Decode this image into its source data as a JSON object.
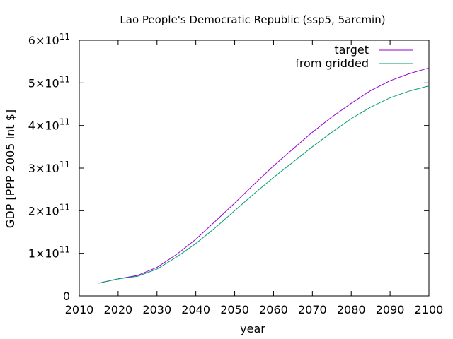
{
  "chart_data": {
    "type": "line",
    "title": "Lao People's Democratic Republic (ssp5, 5arcmin)",
    "xlabel": "year",
    "ylabel": "GDP [PPP 2005 Int $]",
    "xlim": [
      2010,
      2100
    ],
    "ylim": [
      0,
      600000000000
    ],
    "x_ticks": [
      2010,
      2020,
      2030,
      2040,
      2050,
      2060,
      2070,
      2080,
      2090,
      2100
    ],
    "x_tick_labels": [
      "2010",
      "2020",
      "2030",
      "2040",
      "2050",
      "2060",
      "2070",
      "2080",
      "2090",
      "2100"
    ],
    "y_ticks": [
      0,
      100000000000,
      200000000000,
      300000000000,
      400000000000,
      500000000000,
      600000000000
    ],
    "y_tick_labels": [
      {
        "mantissa": "0",
        "exponent": ""
      },
      {
        "mantissa": "1×10",
        "exponent": "11"
      },
      {
        "mantissa": "2×10",
        "exponent": "11"
      },
      {
        "mantissa": "3×10",
        "exponent": "11"
      },
      {
        "mantissa": "4×10",
        "exponent": "11"
      },
      {
        "mantissa": "5×10",
        "exponent": "11"
      },
      {
        "mantissa": "6×10",
        "exponent": "11"
      }
    ],
    "grid": false,
    "legend_position": "top-right",
    "series": [
      {
        "name": "target",
        "color": "#9400d3",
        "x": [
          2015,
          2020,
          2025,
          2030,
          2035,
          2040,
          2045,
          2050,
          2055,
          2060,
          2065,
          2070,
          2075,
          2080,
          2085,
          2090,
          2095,
          2100
        ],
        "y": [
          30000000000,
          40000000000,
          48000000000,
          67000000000,
          97000000000,
          133000000000,
          175000000000,
          218000000000,
          262000000000,
          305000000000,
          345000000000,
          384000000000,
          420000000000,
          452000000000,
          482000000000,
          505000000000,
          522000000000,
          535000000000
        ]
      },
      {
        "name": "from gridded",
        "color": "#009e73",
        "x": [
          2015,
          2020,
          2025,
          2030,
          2035,
          2040,
          2045,
          2050,
          2055,
          2060,
          2065,
          2070,
          2075,
          2080,
          2085,
          2090,
          2095,
          2100
        ],
        "y": [
          30000000000,
          40000000000,
          46000000000,
          63000000000,
          91000000000,
          123000000000,
          160000000000,
          200000000000,
          240000000000,
          278000000000,
          314000000000,
          350000000000,
          384000000000,
          416000000000,
          443000000000,
          465000000000,
          481000000000,
          493000000000
        ]
      }
    ]
  }
}
